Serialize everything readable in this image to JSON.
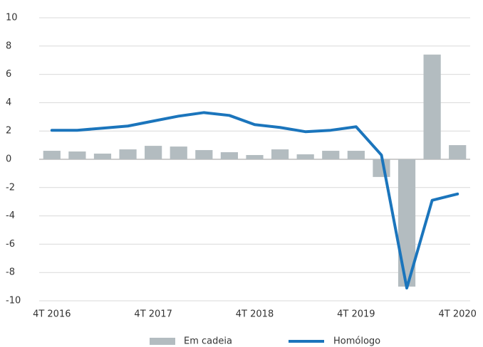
{
  "chart_data": {
    "type": "bar",
    "categories": [
      "4T 2016",
      null,
      null,
      null,
      "4T 2017",
      null,
      null,
      null,
      "4T 2018",
      null,
      null,
      null,
      "4T 2019",
      null,
      null,
      null,
      "4T 2020"
    ],
    "series": [
      {
        "name": "Em cadeia",
        "type": "bar",
        "color": "#b3bcc0",
        "values": [
          0.6,
          0.55,
          0.4,
          0.7,
          0.95,
          0.9,
          0.65,
          0.5,
          0.3,
          0.7,
          0.35,
          0.6,
          0.6,
          -1.25,
          -9.0,
          7.4,
          1.0
        ]
      },
      {
        "name": "Homólogo",
        "type": "line",
        "color": "#1b75bc",
        "values": [
          2.05,
          2.05,
          2.2,
          2.35,
          2.7,
          3.05,
          3.3,
          3.1,
          2.45,
          2.25,
          1.95,
          2.05,
          2.3,
          0.3,
          -9.1,
          -2.9,
          -2.45
        ]
      }
    ],
    "ylim": [
      -10,
      10
    ],
    "yticks": [
      -10,
      -8,
      -6,
      -4,
      -2,
      0,
      2,
      4,
      6,
      8,
      10
    ],
    "grid": true,
    "legend": "bottom"
  }
}
